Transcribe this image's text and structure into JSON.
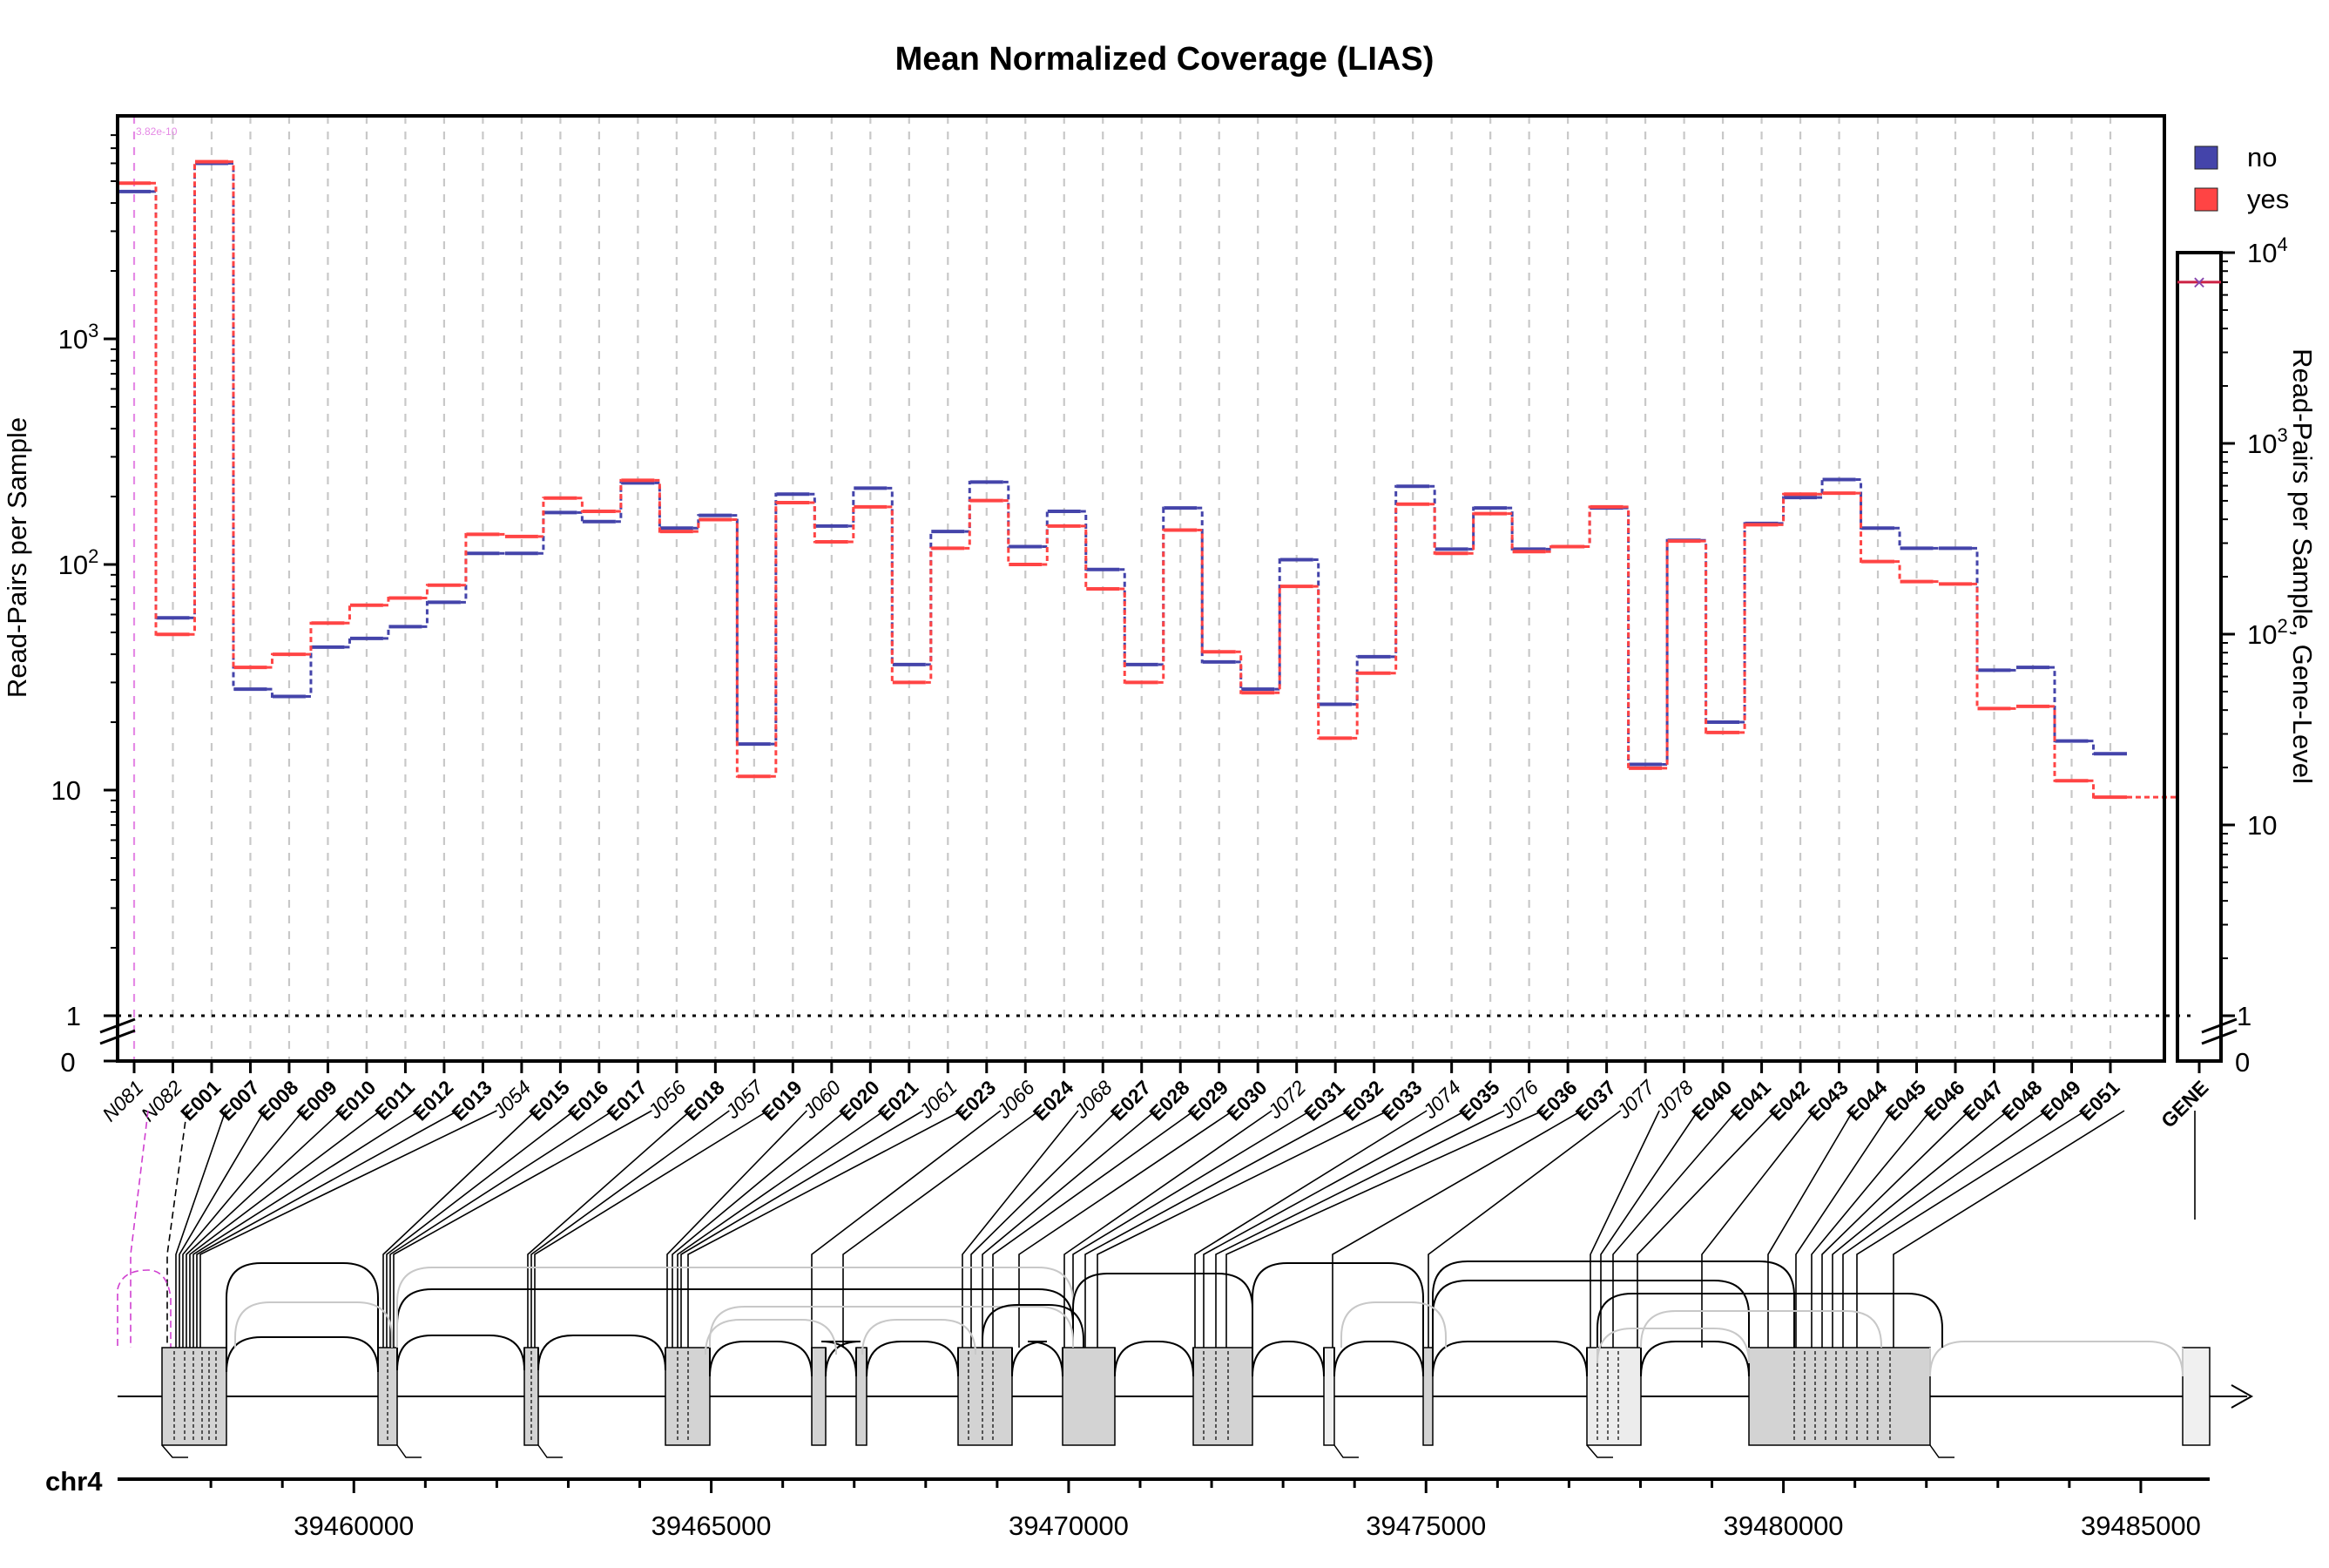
{
  "chart_data": {
    "type": "line",
    "title": "Mean Normalized Coverage (LIAS)",
    "ylabel": "Read-Pairs per Sample",
    "ylabel_right": "Read-Pairs per Sample, Gene-Level",
    "yscale": "log",
    "ylim": [
      1,
      8000
    ],
    "y_ticks": [
      "1",
      "10",
      "10^2",
      "10^3"
    ],
    "y_zero_label": "0",
    "y_ticks_right": [
      "10",
      "10^2",
      "10^3",
      "10^4"
    ],
    "y_right_lim": [
      1,
      12000
    ],
    "legend": {
      "position": "top-right",
      "entries": [
        {
          "name": "no",
          "color": "#4444aa"
        },
        {
          "name": "yes",
          "color": "#ff4444"
        }
      ]
    },
    "reference_line": {
      "value": 1,
      "style": "dotted"
    },
    "pvalue_annotation": "3.82e-10",
    "categories": [
      "N081",
      "N082",
      "E001",
      "E007",
      "E008",
      "E009",
      "E010",
      "E011",
      "E012",
      "E013",
      "J054",
      "E015",
      "E016",
      "E017",
      "J056",
      "E018",
      "J057",
      "E019",
      "J060",
      "E020",
      "E021",
      "J061",
      "E023",
      "J066",
      "E024",
      "J068",
      "E027",
      "E028",
      "E029",
      "E030",
      "J072",
      "E031",
      "E032",
      "E033",
      "J074",
      "E035",
      "J076",
      "E036",
      "E037",
      "J077",
      "J078",
      "E040",
      "E041",
      "E042",
      "E043",
      "E044",
      "E045",
      "E046",
      "E047",
      "E048",
      "E049",
      "E051"
    ],
    "italic_categories": [
      "N081",
      "N082",
      "J054",
      "J056",
      "J057",
      "J060",
      "J061",
      "J066",
      "J068",
      "J072",
      "J074",
      "J076",
      "J077",
      "J078"
    ],
    "series": [
      {
        "name": "no",
        "color": "#4444aa",
        "values": [
          4500,
          58,
          6000,
          28,
          26,
          43,
          47,
          53,
          68,
          112,
          112,
          170,
          155,
          230,
          145,
          165,
          16,
          205,
          148,
          218,
          36,
          140,
          232,
          120,
          172,
          95,
          36,
          178,
          37,
          28,
          105,
          24,
          39,
          222,
          117,
          178,
          117,
          120,
          178,
          13,
          128,
          20,
          152,
          198,
          238,
          145,
          118,
          118,
          34,
          35,
          16.5,
          14.5
        ]
      },
      {
        "name": "yes",
        "color": "#ff4444",
        "values": [
          4900,
          49,
          6100,
          35,
          40,
          55,
          66,
          71,
          81,
          136,
          133,
          197,
          172,
          236,
          140,
          158,
          11.5,
          188,
          126,
          180,
          30,
          118,
          192,
          100,
          148,
          78,
          30,
          142,
          41,
          27,
          80,
          17,
          33,
          185,
          112,
          168,
          114,
          120,
          180,
          12.5,
          127,
          18,
          150,
          205,
          207,
          103,
          84,
          82,
          23,
          23.5,
          11,
          9.3
        ]
      }
    ],
    "gene_level": {
      "label": "GENE",
      "no": 7000,
      "yes": 7000
    },
    "genomic_axis": {
      "chromosome": "chr4",
      "ticks": [
        "39460000",
        "39465000",
        "39470000",
        "39475000",
        "39480000",
        "39485000"
      ],
      "tick_values": [
        39460000,
        39465000,
        39470000,
        39475000,
        39480000,
        39485000
      ],
      "range": [
        39458000,
        39485000
      ]
    }
  }
}
